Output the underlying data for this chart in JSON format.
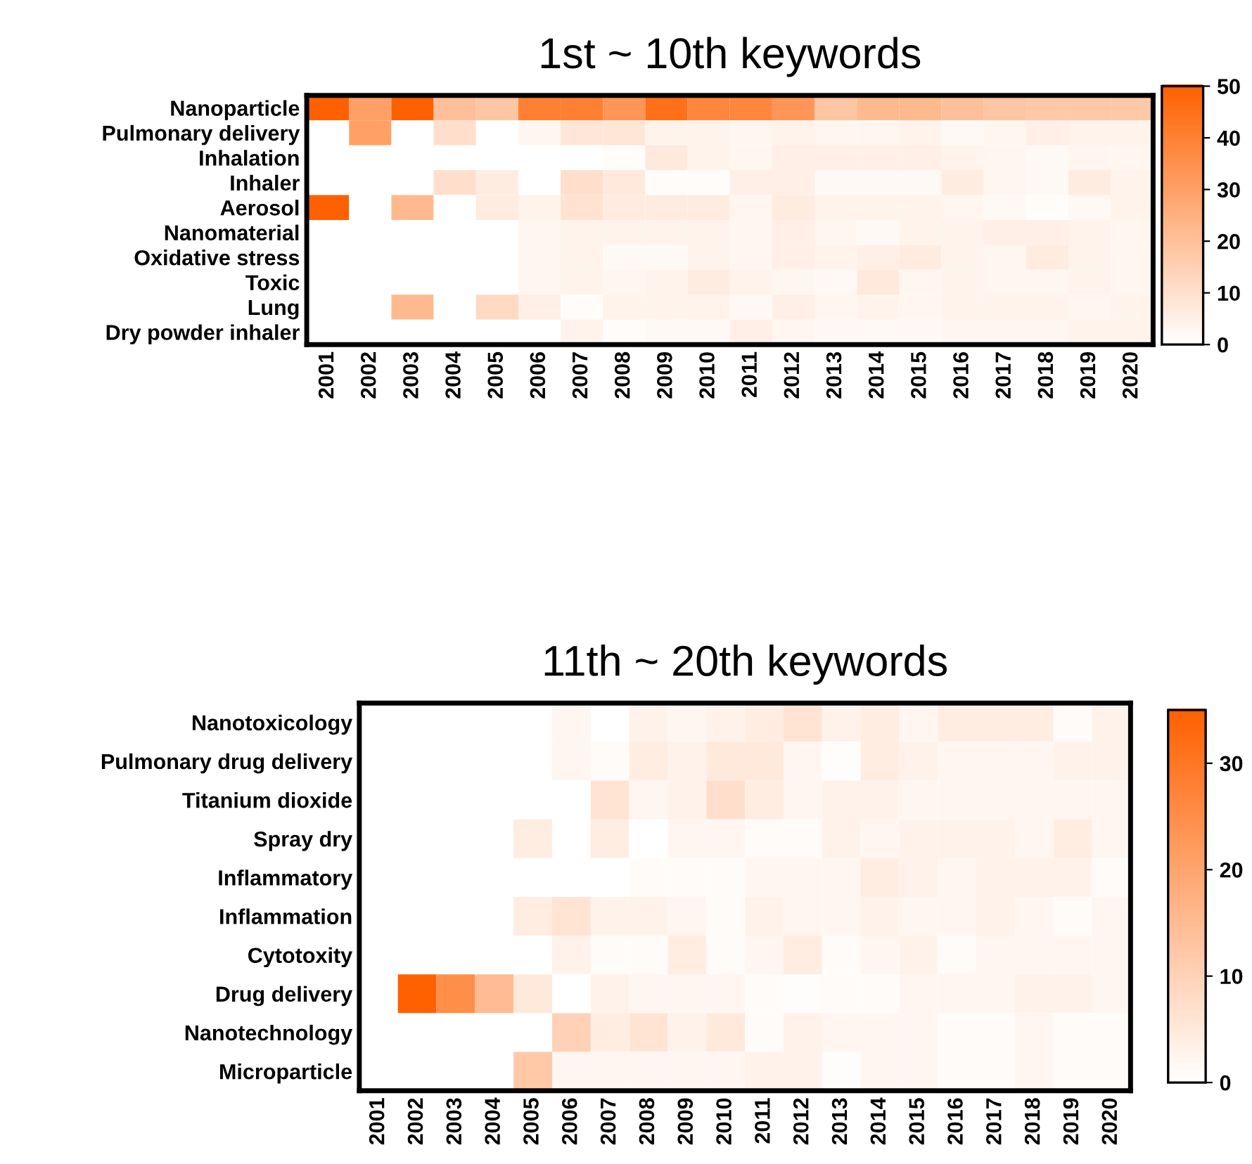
{
  "chart_data": [
    {
      "type": "heatmap",
      "title": "1st ~ 10th keywords",
      "categories": [
        "2001",
        "2002",
        "2003",
        "2004",
        "2005",
        "2006",
        "2007",
        "2008",
        "2009",
        "2010",
        "2011",
        "2012",
        "2013",
        "2014",
        "2015",
        "2016",
        "2017",
        "2018",
        "2019",
        "2020"
      ],
      "y_categories": [
        "Nanoparticle",
        "Pulmonary delivery",
        "Inhalation",
        "Inhaler",
        "Aerosol",
        "Nanomaterial",
        "Oxidative stress",
        "Toxic",
        "Lung",
        "Dry powder inhaler"
      ],
      "cells": [
        [
          50,
          30,
          50,
          20,
          18,
          40,
          40,
          33,
          45,
          38,
          38,
          33,
          18,
          22,
          22,
          20,
          18,
          17,
          17,
          17
        ],
        [
          0,
          30,
          0,
          10,
          0,
          3,
          8,
          8,
          4,
          4,
          3,
          4,
          3,
          3,
          4,
          2,
          3,
          5,
          4,
          4
        ],
        [
          0,
          0,
          0,
          0,
          0,
          0,
          0,
          1,
          7,
          4,
          3,
          5,
          5,
          5,
          5,
          4,
          3,
          2,
          3,
          3
        ],
        [
          0,
          0,
          0,
          10,
          6,
          0,
          10,
          7,
          1,
          1,
          5,
          5,
          2,
          2,
          2,
          6,
          3,
          2,
          6,
          4
        ],
        [
          50,
          0,
          22,
          0,
          6,
          4,
          9,
          6,
          6,
          6,
          3,
          6,
          4,
          4,
          4,
          3,
          2,
          1,
          2,
          4
        ],
        [
          0,
          0,
          0,
          0,
          0,
          3,
          4,
          4,
          4,
          4,
          3,
          5,
          3,
          2,
          4,
          4,
          5,
          5,
          4,
          3
        ],
        [
          0,
          0,
          0,
          0,
          0,
          3,
          4,
          2,
          2,
          4,
          3,
          5,
          4,
          5,
          6,
          4,
          3,
          6,
          4,
          3
        ],
        [
          0,
          0,
          0,
          0,
          0,
          3,
          4,
          3,
          4,
          6,
          4,
          3,
          2,
          7,
          3,
          4,
          3,
          3,
          4,
          3
        ],
        [
          0,
          0,
          22,
          0,
          12,
          5,
          1,
          4,
          4,
          4,
          2,
          5,
          3,
          4,
          3,
          4,
          4,
          4,
          3,
          4
        ],
        [
          0,
          0,
          0,
          0,
          0,
          0,
          4,
          1,
          2,
          2,
          5,
          3,
          2,
          2,
          2,
          3,
          3,
          3,
          4,
          4
        ]
      ],
      "clim": [
        0,
        50
      ],
      "cticks": [
        0,
        10,
        20,
        30,
        40,
        50
      ],
      "color": "#ff6000"
    },
    {
      "type": "heatmap",
      "title": "11th ~ 20th keywords",
      "categories": [
        "2001",
        "2002",
        "2003",
        "2004",
        "2005",
        "2006",
        "2007",
        "2008",
        "2009",
        "2010",
        "2011",
        "2012",
        "2013",
        "2014",
        "2015",
        "2016",
        "2017",
        "2018",
        "2019",
        "2020"
      ],
      "y_categories": [
        "Nanotoxicology",
        "Pulmonary drug delivery",
        "Titanium dioxide",
        "Spray dry",
        "Inflammatory",
        "Inflammation",
        "Cytotoxity",
        "Drug delivery",
        "Nanotechnology",
        "Microparticle"
      ],
      "cells": [
        [
          0,
          0,
          0,
          0,
          0,
          2,
          0,
          3,
          2,
          3,
          4,
          6,
          3,
          4,
          2,
          4,
          4,
          4,
          1,
          3
        ],
        [
          0,
          0,
          0,
          0,
          0,
          2,
          1,
          4,
          3,
          5,
          5,
          2,
          0.5,
          4,
          3,
          2,
          2,
          2,
          3,
          3
        ],
        [
          0,
          0,
          0,
          0,
          0,
          0,
          6,
          2,
          3,
          7,
          4,
          2,
          3,
          3,
          2,
          2,
          2,
          2,
          2,
          2
        ],
        [
          0,
          0,
          0,
          0,
          4,
          0,
          4,
          0,
          2,
          2,
          1,
          1,
          3,
          2,
          3,
          3,
          3,
          2,
          4,
          2
        ],
        [
          0,
          0,
          0,
          0,
          0,
          0,
          0,
          1,
          1,
          1,
          2,
          2,
          2,
          4,
          3,
          2,
          3,
          3,
          3,
          1
        ],
        [
          0,
          0,
          0,
          0,
          4,
          6,
          3,
          3,
          2,
          1,
          3,
          2,
          2,
          3,
          2,
          2,
          3,
          2,
          1,
          2
        ],
        [
          0,
          0,
          0,
          0,
          0,
          3,
          1,
          1,
          4,
          1,
          2,
          4,
          1,
          2,
          3,
          1,
          2,
          2,
          2,
          2
        ],
        [
          0,
          35,
          25,
          15,
          5,
          0,
          3,
          2,
          2,
          2,
          1,
          0.5,
          1,
          1,
          2,
          2,
          2,
          3,
          3,
          2
        ],
        [
          0,
          0,
          0,
          0,
          0,
          10,
          4,
          6,
          3,
          5,
          1,
          3,
          2,
          2,
          2,
          1,
          1,
          2,
          1,
          1
        ],
        [
          0,
          0,
          0,
          0,
          12,
          2,
          2,
          2,
          2,
          2,
          3,
          3,
          0.5,
          2,
          2,
          1,
          1,
          2,
          1,
          1
        ]
      ],
      "clim": [
        0,
        35
      ],
      "cticks": [
        0,
        10,
        20,
        30
      ],
      "color": "#ff6000"
    }
  ]
}
